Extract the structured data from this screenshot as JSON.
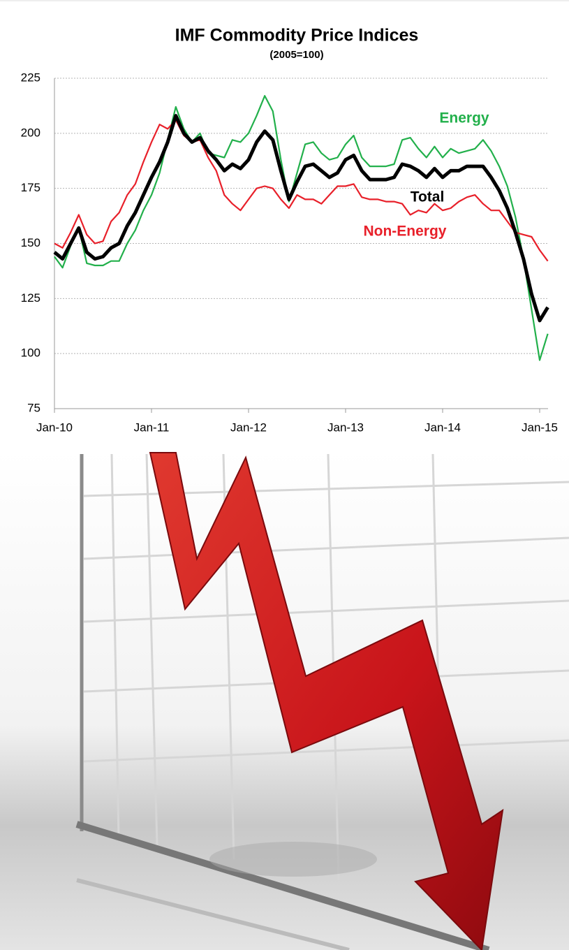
{
  "chart_data": {
    "type": "line",
    "title": "IMF Commodity Price Indices",
    "subtitle": "(2005=100)",
    "categories": [
      "Jan-10",
      null,
      null,
      null,
      null,
      null,
      null,
      null,
      null,
      null,
      null,
      null,
      "Jan-11",
      null,
      null,
      null,
      null,
      null,
      null,
      null,
      null,
      null,
      null,
      null,
      "Jan-12",
      null,
      null,
      null,
      null,
      null,
      null,
      null,
      null,
      null,
      null,
      null,
      "Jan-13",
      null,
      null,
      null,
      null,
      null,
      null,
      null,
      null,
      null,
      null,
      null,
      "Jan-14",
      null,
      null,
      null,
      null,
      null,
      null,
      null,
      null,
      null,
      null,
      null,
      "Jan-15",
      null
    ],
    "series": [
      {
        "name": "Energy",
        "color": "#22b04b",
        "values": [
          144,
          139,
          149,
          157,
          141,
          140,
          140,
          142,
          142,
          150,
          156,
          165,
          172,
          182,
          197,
          212,
          202,
          196,
          200,
          191,
          190,
          189,
          197,
          196,
          200,
          208,
          217,
          210,
          188,
          169,
          182,
          195,
          196,
          191,
          188,
          189,
          195,
          199,
          189,
          185,
          185,
          185,
          186,
          197,
          198,
          193,
          189,
          194,
          189,
          193,
          191,
          192,
          193,
          197,
          192,
          185,
          176,
          162,
          143,
          120,
          97,
          109
        ]
      },
      {
        "name": "Total",
        "color": "#000000",
        "values": [
          146,
          143,
          150,
          157,
          146,
          143,
          144,
          148,
          150,
          158,
          164,
          172,
          180,
          187,
          196,
          208,
          200,
          196,
          198,
          192,
          188,
          183,
          186,
          184,
          188,
          196,
          201,
          197,
          183,
          170,
          178,
          185,
          186,
          183,
          180,
          182,
          188,
          190,
          183,
          179,
          179,
          179,
          180,
          186,
          185,
          183,
          180,
          184,
          180,
          183,
          183,
          185,
          185,
          185,
          180,
          174,
          166,
          155,
          143,
          127,
          115,
          121
        ]
      },
      {
        "name": "Non-Energy",
        "color": "#e8202a",
        "values": [
          150,
          148,
          155,
          163,
          154,
          150,
          151,
          160,
          164,
          172,
          177,
          187,
          196,
          204,
          202,
          206,
          199,
          196,
          197,
          189,
          183,
          172,
          168,
          165,
          170,
          175,
          176,
          175,
          170,
          166,
          172,
          170,
          170,
          168,
          172,
          176,
          176,
          177,
          171,
          170,
          170,
          169,
          169,
          168,
          163,
          165,
          164,
          168,
          165,
          166,
          169,
          171,
          172,
          168,
          165,
          165,
          160,
          155,
          154,
          153,
          147,
          142
        ]
      }
    ],
    "ylim": [
      75,
      225
    ],
    "yticks": [
      75,
      100,
      125,
      150,
      175,
      200,
      225
    ],
    "grid": true
  }
}
